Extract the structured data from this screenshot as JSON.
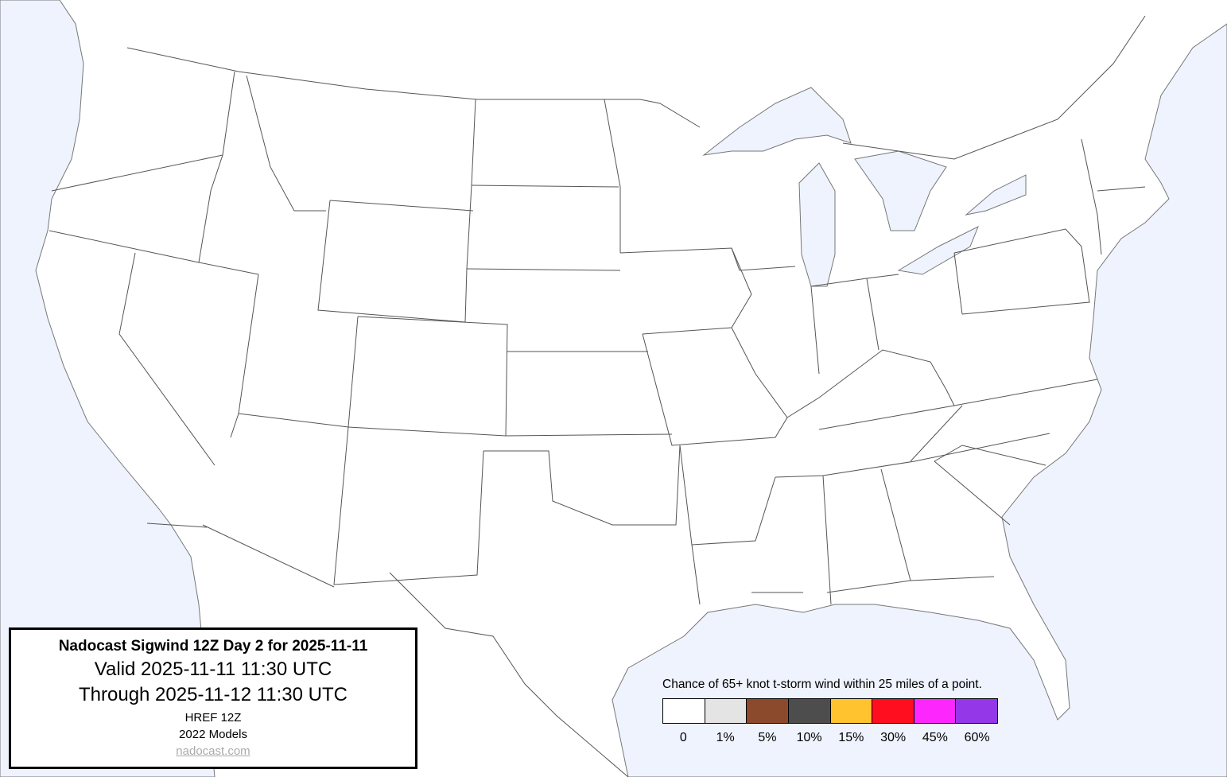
{
  "info": {
    "title": "Nadocast Sigwind 12Z Day 2 for 2025-11-11",
    "valid": "Valid 2025-11-11 11:30 UTC",
    "through": "Through 2025-11-12 11:30 UTC",
    "model": "HREF 12Z",
    "models_year": "2022 Models",
    "link": "nadocast.com"
  },
  "legend": {
    "title": "Chance of 65+ knot t-storm wind within 25 miles of a point.",
    "bins": [
      {
        "label": "0",
        "color": "#ffffff"
      },
      {
        "label": "1%",
        "color": "#e4e4e4"
      },
      {
        "label": "5%",
        "color": "#8b4a2b"
      },
      {
        "label": "10%",
        "color": "#4d4d4d"
      },
      {
        "label": "15%",
        "color": "#fec32f"
      },
      {
        "label": "30%",
        "color": "#fe0e1e"
      },
      {
        "label": "45%",
        "color": "#fd27fd"
      },
      {
        "label": "60%",
        "color": "#9337e8"
      }
    ]
  },
  "colors": {
    "water": "#eef3fd",
    "land": "#ffffff",
    "borders": "#555555"
  }
}
